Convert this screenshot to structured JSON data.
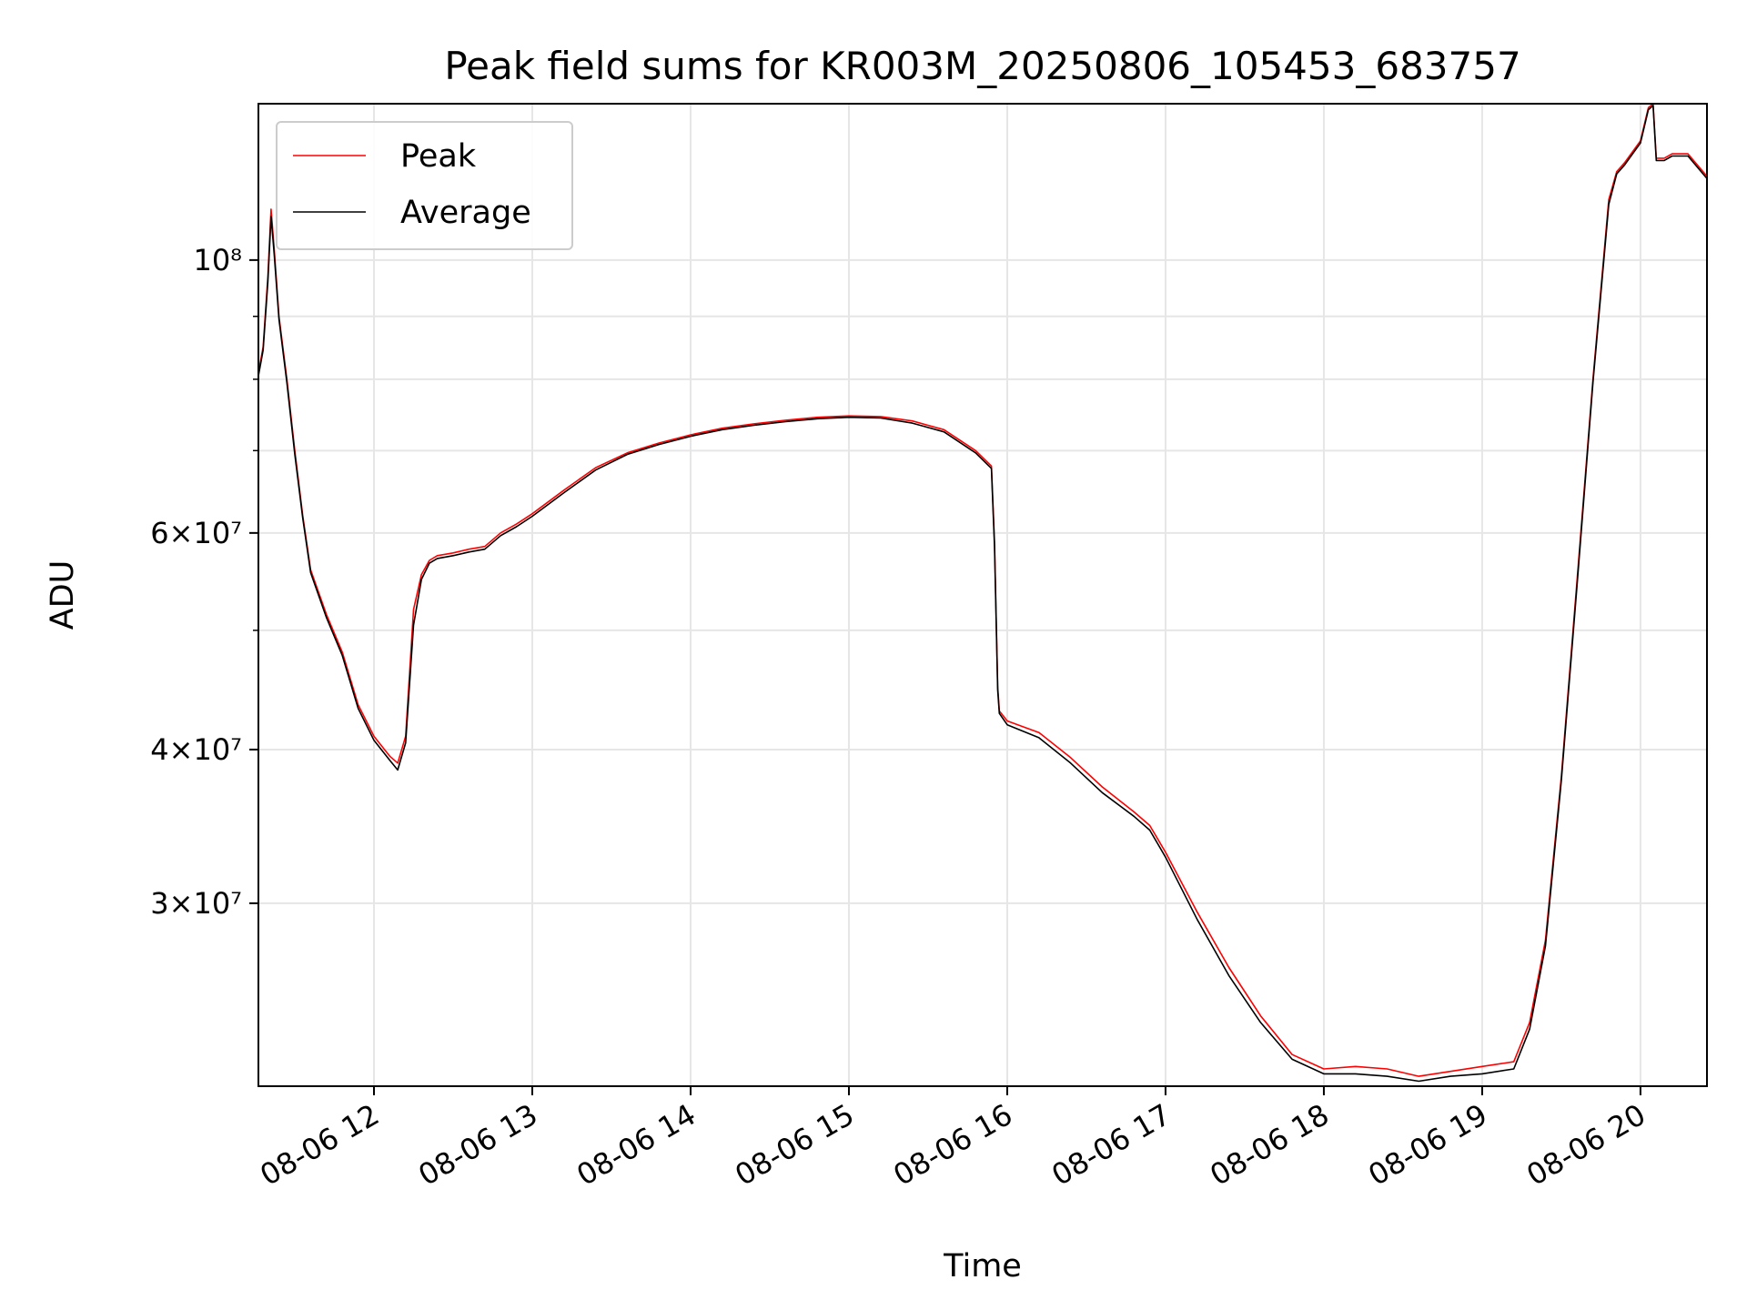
{
  "chart_data": {
    "type": "line",
    "title": "Peak field sums for KR003M_20250806_105453_683757",
    "xlabel": "Time",
    "ylabel": "ADU",
    "yscale": "log",
    "xlim_hours": [
      11.27,
      20.42
    ],
    "ylim": [
      21300000,
      134000000
    ],
    "grid": true,
    "legend_position": "upper left",
    "x_ticks": [
      {
        "label": "08-06 12",
        "value": 12
      },
      {
        "label": "08-06 13",
        "value": 13
      },
      {
        "label": "08-06 14",
        "value": 14
      },
      {
        "label": "08-06 15",
        "value": 15
      },
      {
        "label": "08-06 16",
        "value": 16
      },
      {
        "label": "08-06 17",
        "value": 17
      },
      {
        "label": "08-06 18",
        "value": 18
      },
      {
        "label": "08-06 19",
        "value": 19
      },
      {
        "label": "08-06 20",
        "value": 20
      }
    ],
    "y_ticks": [
      {
        "label": "3×10⁷",
        "value": 30000000
      },
      {
        "label": "4×10⁷",
        "value": 40000000
      },
      {
        "label": "6×10⁷",
        "value": 60000000
      },
      {
        "label": "10⁸",
        "value": 100000000
      }
    ],
    "y_minor_ticks": [
      50000000,
      70000000,
      80000000,
      90000000
    ],
    "series": [
      {
        "name": "Peak",
        "color": "#ff0000",
        "x_hours": [
          11.27,
          11.3,
          11.33,
          11.35,
          11.37,
          11.4,
          11.45,
          11.5,
          11.55,
          11.6,
          11.7,
          11.8,
          11.9,
          12.0,
          12.1,
          12.15,
          12.2,
          12.25,
          12.3,
          12.35,
          12.4,
          12.5,
          12.6,
          12.7,
          12.8,
          12.9,
          13.0,
          13.2,
          13.4,
          13.6,
          13.8,
          14.0,
          14.2,
          14.4,
          14.6,
          14.8,
          15.0,
          15.2,
          15.4,
          15.6,
          15.8,
          15.9,
          15.92,
          15.94,
          15.95,
          16.0,
          16.2,
          16.4,
          16.6,
          16.8,
          16.9,
          17.0,
          17.2,
          17.4,
          17.6,
          17.8,
          18.0,
          18.2,
          18.4,
          18.6,
          18.8,
          19.0,
          19.2,
          19.3,
          19.4,
          19.5,
          19.6,
          19.7,
          19.8,
          19.85,
          19.9,
          20.0,
          20.05,
          20.08,
          20.1,
          20.15,
          20.2,
          20.3,
          20.42
        ],
        "y": [
          81000000,
          85000000,
          97000000,
          110000000,
          102000000,
          90000000,
          80000000,
          70000000,
          62000000,
          56000000,
          51500000,
          48000000,
          43500000,
          41000000,
          39500000,
          39000000,
          41000000,
          52000000,
          55500000,
          57000000,
          57500000,
          57800000,
          58200000,
          58500000,
          60000000,
          61000000,
          62200000,
          65000000,
          67800000,
          69700000,
          71000000,
          72100000,
          73000000,
          73600000,
          74100000,
          74500000,
          74700000,
          74600000,
          74000000,
          72800000,
          70000000,
          68000000,
          59000000,
          45000000,
          43000000,
          42200000,
          41300000,
          39400000,
          37300000,
          35600000,
          34700000,
          33000000,
          29500000,
          26600000,
          24300000,
          22600000,
          22000000,
          22100000,
          22000000,
          21700000,
          21900000,
          22100000,
          22300000,
          24000000,
          28000000,
          38000000,
          55000000,
          80000000,
          112000000,
          118000000,
          120000000,
          125000000,
          133000000,
          134000000,
          121000000,
          121000000,
          122000000,
          122000000,
          117000000
        ]
      },
      {
        "name": "Average",
        "color": "#000000",
        "x_hours": [
          11.27,
          11.3,
          11.33,
          11.35,
          11.37,
          11.4,
          11.45,
          11.5,
          11.55,
          11.6,
          11.7,
          11.8,
          11.9,
          12.0,
          12.1,
          12.15,
          12.2,
          12.25,
          12.3,
          12.35,
          12.4,
          12.5,
          12.6,
          12.7,
          12.8,
          12.9,
          13.0,
          13.2,
          13.4,
          13.6,
          13.8,
          14.0,
          14.2,
          14.4,
          14.6,
          14.8,
          15.0,
          15.2,
          15.4,
          15.6,
          15.8,
          15.9,
          15.92,
          15.94,
          15.95,
          16.0,
          16.2,
          16.4,
          16.6,
          16.8,
          16.9,
          17.0,
          17.2,
          17.4,
          17.6,
          17.8,
          18.0,
          18.2,
          18.4,
          18.6,
          18.8,
          19.0,
          19.2,
          19.3,
          19.4,
          19.5,
          19.6,
          19.7,
          19.8,
          19.85,
          19.9,
          20.0,
          20.05,
          20.08,
          20.1,
          20.15,
          20.2,
          20.3,
          20.42
        ],
        "y": [
          80500000,
          84500000,
          96000000,
          108500000,
          101000000,
          89500000,
          79500000,
          69500000,
          61700000,
          55700000,
          51200000,
          47700000,
          43200000,
          40700000,
          39200000,
          38500000,
          40500000,
          50500000,
          55000000,
          56700000,
          57200000,
          57500000,
          57900000,
          58200000,
          59700000,
          60700000,
          61900000,
          64700000,
          67500000,
          69500000,
          70800000,
          71900000,
          72800000,
          73400000,
          73900000,
          74300000,
          74500000,
          74400000,
          73700000,
          72500000,
          69700000,
          67700000,
          58500000,
          44700000,
          42800000,
          41900000,
          40900000,
          39000000,
          36900000,
          35300000,
          34400000,
          32700000,
          29100000,
          26200000,
          24000000,
          22400000,
          21800000,
          21800000,
          21700000,
          21500000,
          21700000,
          21800000,
          22000000,
          23700000,
          27700000,
          37700000,
          54500000,
          79500000,
          111000000,
          117500000,
          119500000,
          124500000,
          132500000,
          133500000,
          120500000,
          120500000,
          121500000,
          121500000,
          116500000
        ]
      }
    ]
  }
}
